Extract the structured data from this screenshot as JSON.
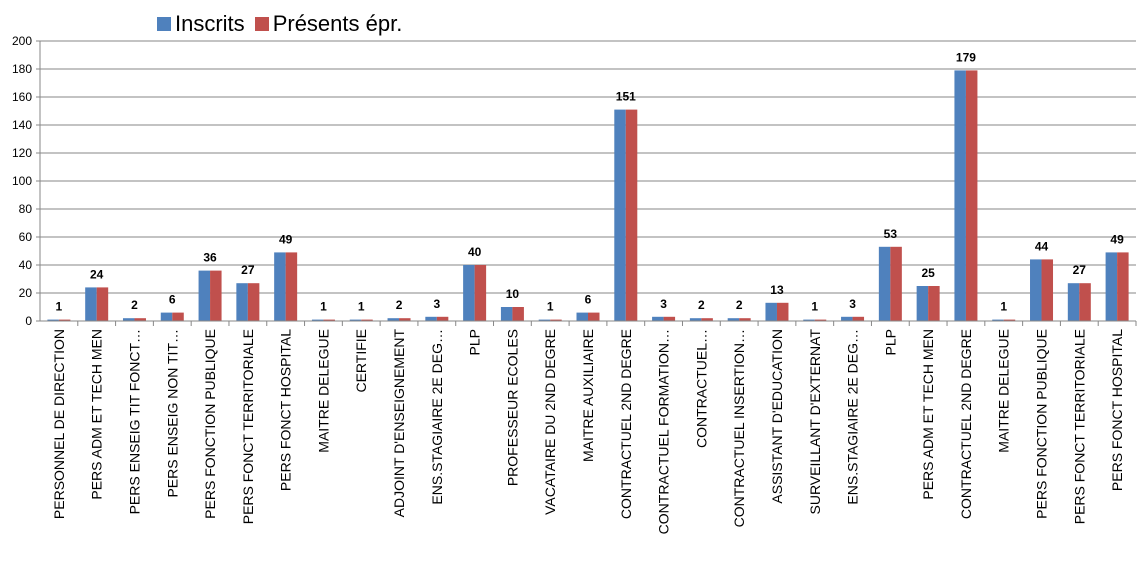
{
  "legend": {
    "inscrits_label": "Inscrits",
    "presents_label": "Présents épr."
  },
  "colors": {
    "inscrits": "#4F81BD",
    "presents": "#C0504D",
    "grid": "#878787",
    "axis": "#878787"
  },
  "chart_data": {
    "type": "bar",
    "ylim": [
      0,
      200
    ],
    "yticks": [
      0,
      20,
      40,
      60,
      80,
      100,
      120,
      140,
      160,
      180,
      200
    ],
    "grid": true,
    "legend_position": "top-left",
    "categories": [
      "PERSONNEL DE DIRECTION",
      "PERS ADM ET TECH MEN",
      "PERS ENSEIG TIT FONCT…",
      "PERS ENSEIG NON TIT…",
      "PERS FONCTION PUBLIQUE",
      "PERS FONCT TERRITORIALE",
      "PERS FONCT HOSPITAL",
      "MAITRE DELEGUE",
      "CERTIFIE",
      "ADJOINT D'ENSEIGNEMENT",
      "ENS.STAGIAIRE 2E DEG…",
      "PLP",
      "PROFESSEUR ECOLES",
      "VACATAIRE DU 2ND DEGRE",
      "MAITRE AUXILIAIRE",
      "CONTRACTUEL 2ND DEGRE",
      "CONTRACTUEL FORMATION…",
      "CONTRACTUEL…",
      "CONTRACTUEL INSERTION…",
      "ASSISTANT D'EDUCATION",
      "SURVEILLANT D'EXTERNAT",
      "ENS.STAGIAIRE 2E DEG…",
      "PLP",
      "PERS ADM ET TECH MEN",
      "CONTRACTUEL 2ND DEGRE",
      "MAITRE DELEGUE",
      "PERS FONCTION PUBLIQUE",
      "PERS FONCT TERRITORIALE",
      "PERS FONCT HOSPITAL"
    ],
    "series": [
      {
        "name": "Inscrits",
        "values": [
          1,
          24,
          2,
          6,
          36,
          27,
          49,
          1,
          1,
          2,
          3,
          40,
          10,
          1,
          6,
          151,
          3,
          2,
          2,
          13,
          1,
          3,
          53,
          25,
          179,
          1,
          44,
          27,
          49
        ]
      },
      {
        "name": "Présents épr.",
        "values": [
          1,
          24,
          2,
          6,
          36,
          27,
          49,
          1,
          1,
          2,
          3,
          40,
          10,
          1,
          6,
          151,
          3,
          2,
          2,
          13,
          1,
          3,
          53,
          25,
          179,
          1,
          44,
          27,
          49
        ]
      }
    ],
    "data_labels": [
      1,
      24,
      2,
      6,
      36,
      27,
      49,
      1,
      1,
      2,
      3,
      40,
      10,
      1,
      6,
      151,
      3,
      2,
      2,
      13,
      1,
      3,
      53,
      25,
      179,
      1,
      44,
      27,
      49
    ]
  }
}
